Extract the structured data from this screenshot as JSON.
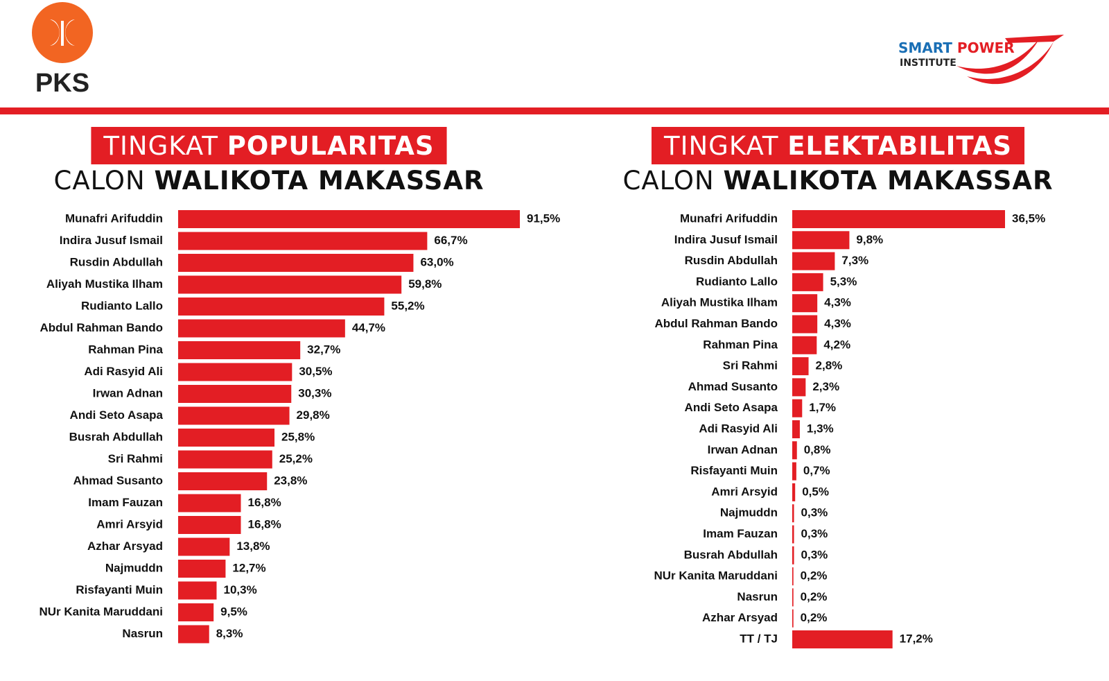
{
  "header": {
    "logo_left": "PKS",
    "logo_right": [
      "SMART",
      "POWER"
    ],
    "logo_right_sub": "INSTITUTE"
  },
  "chart_data": [
    {
      "type": "bar",
      "orientation": "horizontal",
      "color": "#e31e24",
      "title": [
        "TINGKAT",
        "POPULARITAS"
      ],
      "subtitle": [
        "CALON",
        "WALIKOTA MAKASSAR"
      ],
      "categories": [
        "Munafri Arifuddin",
        "Indira Jusuf Ismail",
        "Rusdin Abdullah",
        "Aliyah Mustika Ilham",
        "Rudianto Lallo",
        "Abdul Rahman Bando",
        "Rahman Pina",
        "Adi Rasyid Ali",
        "Irwan Adnan",
        "Andi Seto Asapa",
        "Busrah Abdullah",
        "Sri Rahmi",
        "Ahmad Susanto",
        "Imam Fauzan",
        "Amri Arsyid",
        "Azhar Arsyad",
        "Najmuddn",
        "Risfayanti Muin",
        "NUr Kanita Maruddani",
        "Nasrun"
      ],
      "values": [
        91.5,
        66.7,
        63.0,
        59.8,
        55.2,
        44.7,
        32.7,
        30.5,
        30.3,
        29.8,
        25.8,
        25.2,
        23.8,
        16.8,
        16.8,
        13.8,
        12.7,
        10.3,
        9.5,
        8.3
      ],
      "value_labels": [
        "91,5%",
        "66,7%",
        "63,0%",
        "59,8%",
        "55,2%",
        "44,7%",
        "32,7%",
        "30,5%",
        "30,3%",
        "29,8%",
        "25,8%",
        "25,2%",
        "23,8%",
        "16,8%",
        "16,8%",
        "13,8%",
        "12,7%",
        "10,3%",
        "9,5%",
        "8,3%"
      ]
    },
    {
      "type": "bar",
      "orientation": "horizontal",
      "color": "#e31e24",
      "title": [
        "TINGKAT",
        "ELEKTABILITAS"
      ],
      "subtitle": [
        "CALON",
        "WALIKOTA MAKASSAR"
      ],
      "categories": [
        "Munafri Arifuddin",
        "Indira Jusuf Ismail",
        "Rusdin Abdullah",
        "Rudianto Lallo",
        "Aliyah Mustika Ilham",
        "Abdul Rahman Bando",
        "Rahman Pina",
        "Sri Rahmi",
        "Ahmad Susanto",
        "Andi Seto Asapa",
        "Adi Rasyid Ali",
        "Irwan Adnan",
        "Risfayanti Muin",
        "Amri Arsyid",
        "Najmuddn",
        "Imam Fauzan",
        "Busrah Abdullah",
        "NUr Kanita Maruddani",
        "Nasrun",
        "Azhar Arsyad",
        "TT / TJ"
      ],
      "values": [
        36.5,
        9.8,
        7.3,
        5.3,
        4.3,
        4.3,
        4.2,
        2.8,
        2.3,
        1.7,
        1.3,
        0.8,
        0.7,
        0.5,
        0.3,
        0.3,
        0.3,
        0.2,
        0.2,
        0.2,
        17.2
      ],
      "value_labels": [
        "36,5%",
        "9,8%",
        "7,3%",
        "5,3%",
        "4,3%",
        "4,3%",
        "4,2%",
        "2,8%",
        "2,3%",
        "1,7%",
        "1,3%",
        "0,8%",
        "0,7%",
        "0,5%",
        "0,3%",
        "0,3%",
        "0,3%",
        "0,2%",
        "0,2%",
        "0,2%",
        "17,2%"
      ]
    }
  ]
}
